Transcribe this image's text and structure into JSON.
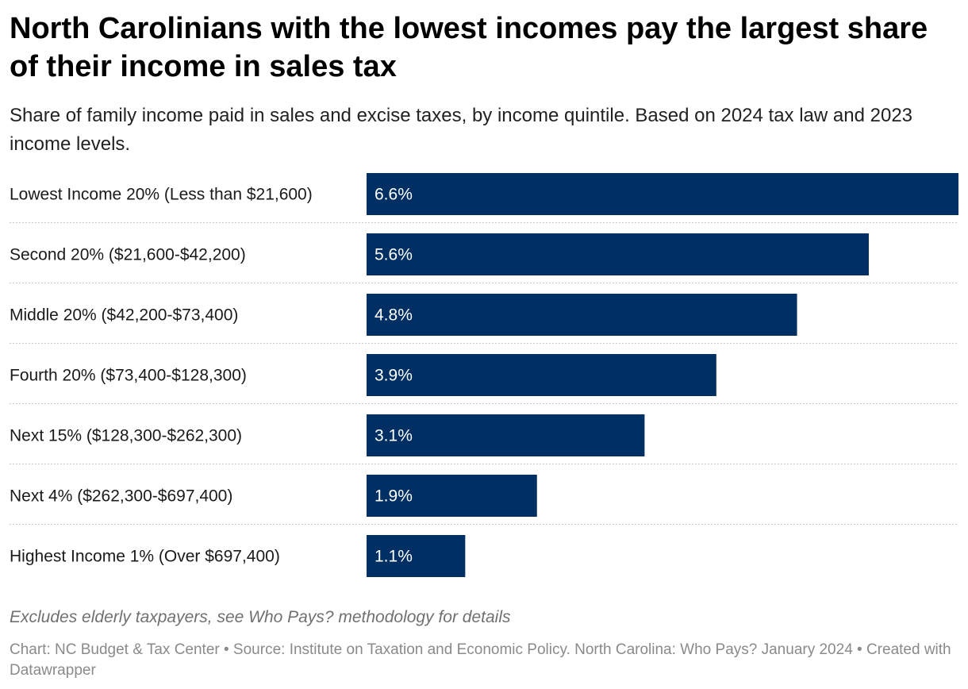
{
  "title": "North Carolinians with the lowest incomes pay the largest share of their income in sales tax",
  "subtitle": "Share of family income paid in sales and excise taxes, by income quintile. Based on 2024 tax law and 2023 income levels.",
  "note": "Excludes elderly taxpayers, see Who Pays? methodology for details",
  "footer": {
    "text": "Chart: NC Budget & Tax Center • Source: Institute on Taxation and Economic Policy. North Carolina: Who Pays? January 2024 • Created with Datawrapper"
  },
  "colors": {
    "bar": "#002f63",
    "bar_text": "#ffffff",
    "separator": "#c8c8c8"
  },
  "chart_data": {
    "type": "bar",
    "orientation": "horizontal",
    "title": "North Carolinians with the lowest incomes pay the largest share of their income in sales tax",
    "categories": [
      "Lowest Income 20% (Less than $21,600)",
      "Second 20% ($21,600-$42,200)",
      "Middle 20% ($42,200-$73,400)",
      "Fourth 20% ($73,400-$128,300)",
      "Next 15% ($128,300-$262,300)",
      "Next 4% ($262,300-$697,400)",
      "Highest Income 1% (Over $697,400)"
    ],
    "values": [
      6.6,
      5.6,
      4.8,
      3.9,
      3.1,
      1.9,
      1.1
    ],
    "value_labels": [
      "6.6%",
      "5.6%",
      "4.8%",
      "3.9%",
      "3.1%",
      "1.9%",
      "1.1%"
    ],
    "unit": "%",
    "xlim": [
      0,
      6.6
    ],
    "xlabel": "",
    "ylabel": ""
  }
}
